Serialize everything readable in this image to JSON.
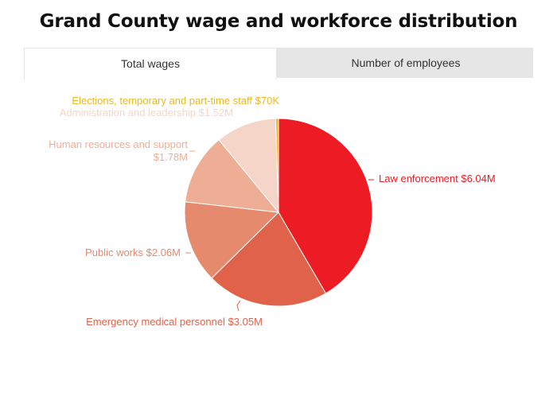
{
  "title": "Grand County wage and workforce distribution",
  "tabs": [
    {
      "label": "Total wages",
      "active": true
    },
    {
      "label": "Number of employees",
      "active": false
    }
  ],
  "chart_data": {
    "type": "pie",
    "title": "Grand County wage and workforce distribution",
    "unit": "$M",
    "slices": [
      {
        "name": "Law enforcement",
        "value": 6.04,
        "label": "Law enforcement $6.04M",
        "color": "#ed1c24"
      },
      {
        "name": "Emergency medical personnel",
        "value": 3.05,
        "label": "Emergency medical personnel $3.05M",
        "color": "#e0624a"
      },
      {
        "name": "Public works",
        "value": 2.06,
        "label": "Public works $2.06M",
        "color": "#e68a6d"
      },
      {
        "name": "Human resources and support",
        "value": 1.78,
        "label_lines": [
          "Human resources and support",
          "$1.78M"
        ],
        "color": "#eeae96"
      },
      {
        "name": "Administration and leadership",
        "value": 1.52,
        "label": "Administration and leadership $1.52M",
        "color": "#f5d5c8"
      },
      {
        "name": "Elections, temporary and part-time staff",
        "value": 0.07,
        "label": "Elections, temporary and part-time staff $70K",
        "color": "#e8b923"
      }
    ]
  }
}
